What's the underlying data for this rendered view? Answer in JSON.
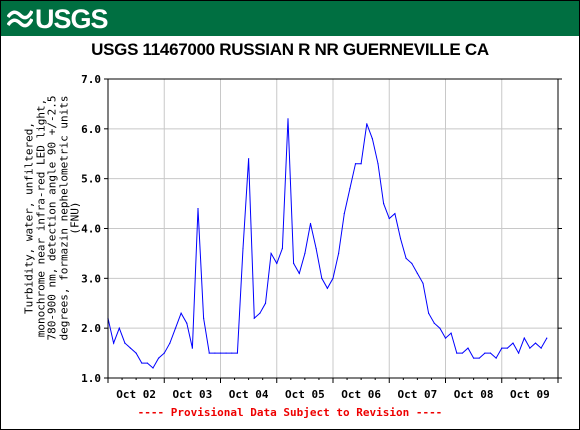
{
  "header": {
    "agency": "USGS",
    "colors": {
      "banner": "#006f41",
      "logo": "#ffffff"
    }
  },
  "footer": {
    "notice": "---- Provisional Data Subject to Revision ----",
    "color": "#ee0000"
  },
  "chart_data": {
    "type": "line",
    "title": "USGS 11467000 RUSSIAN R NR GUERNEVILLE CA",
    "ylabel_lines": [
      "Turbidity, water, unfiltered,",
      "monochrome near infra-red LED light,",
      "780-900 nm, detection angle 90 +/-2.5",
      "degrees, formazin nephelometric units",
      "(FNU)"
    ],
    "xlabel": "",
    "ylim": [
      1.0,
      7.0
    ],
    "yticks": [
      "1.0",
      "2.0",
      "3.0",
      "4.0",
      "5.0",
      "6.0",
      "7.0"
    ],
    "xlim": [
      0,
      8
    ],
    "xticks": [
      "Oct 02",
      "Oct 03",
      "Oct 04",
      "Oct 05",
      "Oct 06",
      "Oct 07",
      "Oct 08",
      "Oct 09"
    ],
    "grid": true,
    "line_color": "#0000ff",
    "series": [
      {
        "x": [
          0.0,
          0.1,
          0.2,
          0.3,
          0.4,
          0.5,
          0.6,
          0.7,
          0.8,
          0.9,
          1.0,
          1.1,
          1.2,
          1.3,
          1.4,
          1.5,
          1.6,
          1.7,
          1.8,
          1.9,
          2.0,
          2.1,
          2.2,
          2.3,
          2.4,
          2.5,
          2.6,
          2.7,
          2.8,
          2.9,
          3.0,
          3.1,
          3.2,
          3.3,
          3.4,
          3.5,
          3.6,
          3.7,
          3.8,
          3.9,
          4.0,
          4.1,
          4.2,
          4.3,
          4.4,
          4.5,
          4.6,
          4.7,
          4.8,
          4.9,
          5.0,
          5.1,
          5.2,
          5.3,
          5.4,
          5.5,
          5.6,
          5.7,
          5.8,
          5.9,
          6.0,
          6.1,
          6.2,
          6.3,
          6.4,
          6.5,
          6.6,
          6.7,
          6.8,
          6.9,
          7.0,
          7.1,
          7.2,
          7.3,
          7.4,
          7.5,
          7.6,
          7.7,
          7.8
        ],
        "values": [
          2.2,
          1.7,
          2.0,
          1.7,
          1.6,
          1.5,
          1.3,
          1.3,
          1.2,
          1.4,
          1.5,
          1.7,
          2.0,
          2.3,
          2.1,
          1.6,
          4.4,
          2.2,
          1.5,
          1.5,
          1.5,
          1.5,
          1.5,
          1.5,
          3.6,
          5.4,
          2.2,
          2.3,
          2.5,
          3.5,
          3.3,
          3.6,
          6.2,
          3.3,
          3.1,
          3.5,
          4.1,
          3.6,
          3.0,
          2.8,
          3.0,
          3.5,
          4.3,
          4.8,
          5.3,
          5.3,
          6.1,
          5.8,
          5.3,
          4.5,
          4.2,
          4.3,
          3.8,
          3.4,
          3.3,
          3.1,
          2.9,
          2.3,
          2.1,
          2.0,
          1.8,
          1.9,
          1.5,
          1.5,
          1.6,
          1.4,
          1.4,
          1.5,
          1.5,
          1.4,
          1.6,
          1.6,
          1.7,
          1.5,
          1.8,
          1.6,
          1.7,
          1.6,
          1.8
        ]
      }
    ]
  }
}
